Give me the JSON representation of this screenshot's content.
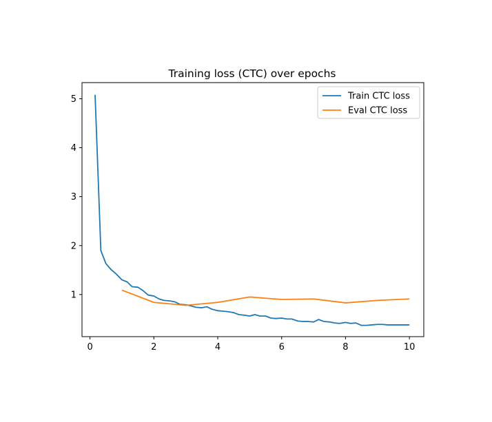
{
  "chart_data": {
    "type": "line",
    "title": "Training loss (CTC) over epochs",
    "xlabel": "",
    "ylabel": "",
    "xlim": [
      -0.25,
      10.45
    ],
    "ylim": [
      0.14,
      5.33
    ],
    "xticks": [
      0,
      2,
      4,
      6,
      8,
      10
    ],
    "yticks": [
      1,
      2,
      3,
      4,
      5
    ],
    "grid": false,
    "legend_position": "top-right",
    "series": [
      {
        "name": "Train CTC loss",
        "color": "#1f77b4",
        "x": [
          0.16,
          0.34,
          0.5,
          0.66,
          0.82,
          1.0,
          1.16,
          1.32,
          1.5,
          1.66,
          1.82,
          2.0,
          2.16,
          2.32,
          2.5,
          2.66,
          2.82,
          3.0,
          3.16,
          3.32,
          3.5,
          3.66,
          3.82,
          4.0,
          4.16,
          4.32,
          4.5,
          4.66,
          4.82,
          5.0,
          5.16,
          5.32,
          5.5,
          5.66,
          5.82,
          6.0,
          6.16,
          6.32,
          6.5,
          6.66,
          6.82,
          7.0,
          7.16,
          7.32,
          7.5,
          7.66,
          7.82,
          8.0,
          8.16,
          8.32,
          8.5,
          8.66,
          8.82,
          9.0,
          9.16,
          9.32,
          9.5,
          9.66,
          9.82,
          10.0
        ],
        "y": [
          5.08,
          1.9,
          1.63,
          1.51,
          1.42,
          1.3,
          1.26,
          1.16,
          1.15,
          1.08,
          0.99,
          0.97,
          0.91,
          0.88,
          0.87,
          0.85,
          0.8,
          0.79,
          0.77,
          0.74,
          0.73,
          0.75,
          0.7,
          0.67,
          0.66,
          0.65,
          0.63,
          0.59,
          0.58,
          0.56,
          0.59,
          0.56,
          0.56,
          0.52,
          0.51,
          0.52,
          0.5,
          0.5,
          0.46,
          0.45,
          0.45,
          0.44,
          0.49,
          0.45,
          0.44,
          0.42,
          0.41,
          0.43,
          0.41,
          0.42,
          0.37,
          0.37,
          0.38,
          0.39,
          0.39,
          0.38,
          0.38,
          0.38,
          0.38,
          0.38
        ]
      },
      {
        "name": "Eval CTC loss",
        "color": "#ff7f0e",
        "x": [
          1,
          2,
          3,
          4,
          5,
          6,
          7,
          8,
          9,
          10
        ],
        "y": [
          1.09,
          0.84,
          0.78,
          0.84,
          0.95,
          0.9,
          0.91,
          0.83,
          0.88,
          0.91
        ]
      }
    ]
  }
}
